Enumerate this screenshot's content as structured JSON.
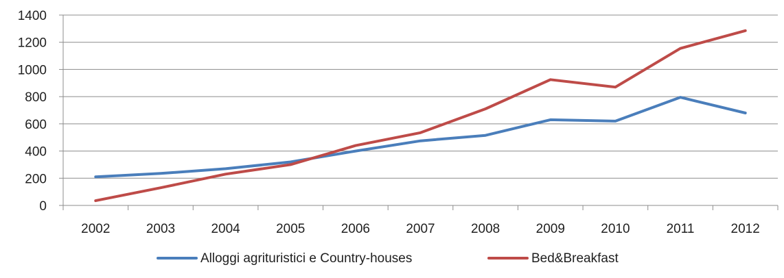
{
  "chart_data": {
    "type": "line",
    "title": "",
    "xlabel": "",
    "ylabel": "",
    "categories": [
      "2002",
      "2003",
      "2004",
      "2005",
      "2006",
      "2007",
      "2008",
      "2009",
      "2010",
      "2011",
      "2012"
    ],
    "ylim": [
      0,
      1400
    ],
    "yticks": [
      0,
      200,
      400,
      600,
      800,
      1000,
      1200,
      1400
    ],
    "grid": true,
    "legend_position": "bottom",
    "series": [
      {
        "name": "Alloggi agrituristici e Country-houses",
        "color": "#4a7ebb",
        "values": [
          210,
          235,
          270,
          320,
          400,
          475,
          515,
          630,
          620,
          795,
          680
        ]
      },
      {
        "name": "Bed&Breakfast",
        "color": "#be4b48",
        "values": [
          35,
          130,
          230,
          300,
          440,
          535,
          710,
          925,
          870,
          1155,
          1285
        ]
      }
    ]
  }
}
